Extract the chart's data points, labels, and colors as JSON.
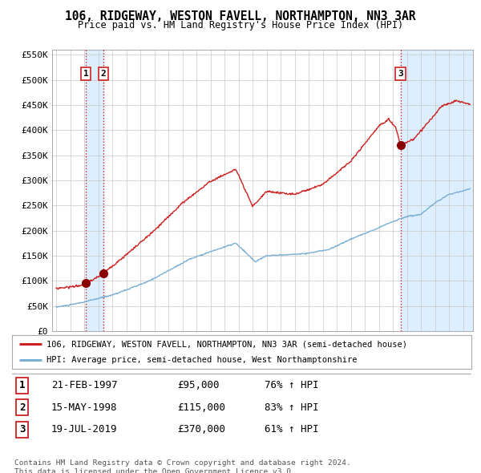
{
  "title": "106, RIDGEWAY, WESTON FAVELL, NORTHAMPTON, NN3 3AR",
  "subtitle": "Price paid vs. HM Land Registry's House Price Index (HPI)",
  "background_color": "#ffffff",
  "plot_bg_color": "#ffffff",
  "grid_color": "#c8c8c8",
  "hpi_line_color": "#7ab0d4",
  "price_line_color": "#cc2222",
  "shade_color": "#ddeeff",
  "sale_marker_color": "#880000",
  "ylabel_ticks": [
    "£0",
    "£50K",
    "£100K",
    "£150K",
    "£200K",
    "£250K",
    "£300K",
    "£350K",
    "£400K",
    "£450K",
    "£500K",
    "£550K"
  ],
  "ytick_values": [
    0,
    50000,
    100000,
    150000,
    200000,
    250000,
    300000,
    350000,
    400000,
    450000,
    500000,
    550000
  ],
  "xmin": 1994.7,
  "xmax": 2024.7,
  "ymin": 0,
  "ymax": 560000,
  "sales": [
    {
      "label": "1",
      "date_str": "21-FEB-1997",
      "year": 1997.13,
      "price": 95000
    },
    {
      "label": "2",
      "date_str": "15-MAY-1998",
      "year": 1998.37,
      "price": 115000
    },
    {
      "label": "3",
      "date_str": "19-JUL-2019",
      "year": 2019.54,
      "price": 370000
    }
  ],
  "sale_pct": [
    "76% ↑ HPI",
    "83% ↑ HPI",
    "61% ↑ HPI"
  ],
  "legend_line1": "106, RIDGEWAY, WESTON FAVELL, NORTHAMPTON, NN3 3AR (semi-detached house)",
  "legend_line2": "HPI: Average price, semi-detached house, West Northamptonshire",
  "footer1": "Contains HM Land Registry data © Crown copyright and database right 2024.",
  "footer2": "This data is licensed under the Open Government Licence v3.0."
}
